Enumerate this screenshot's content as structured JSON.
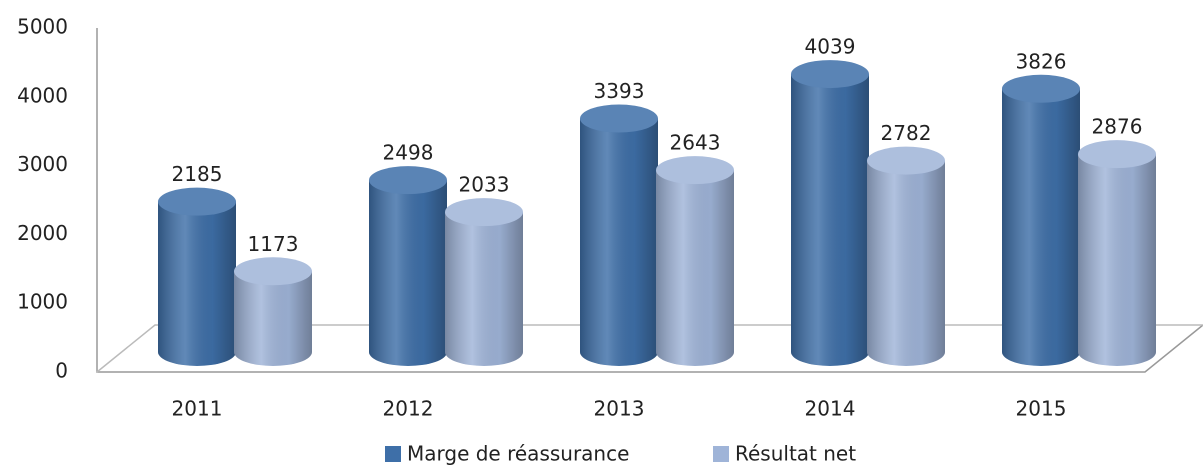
{
  "chart_data": {
    "type": "bar3d",
    "categories": [
      "2011",
      "2012",
      "2013",
      "2014",
      "2015"
    ],
    "series": [
      {
        "name": "Marge de réassurance",
        "color": "#3e6fa8",
        "values": [
          2185,
          2498,
          3393,
          4039,
          3826
        ]
      },
      {
        "name": "Résultat net",
        "color": "#9fb4d8",
        "values": [
          1173,
          2033,
          2643,
          2782,
          2876
        ]
      }
    ],
    "ylim": [
      0,
      5000
    ],
    "yticks": [
      0,
      1000,
      2000,
      3000,
      4000,
      5000
    ],
    "grid": false,
    "legend": "bottom"
  }
}
